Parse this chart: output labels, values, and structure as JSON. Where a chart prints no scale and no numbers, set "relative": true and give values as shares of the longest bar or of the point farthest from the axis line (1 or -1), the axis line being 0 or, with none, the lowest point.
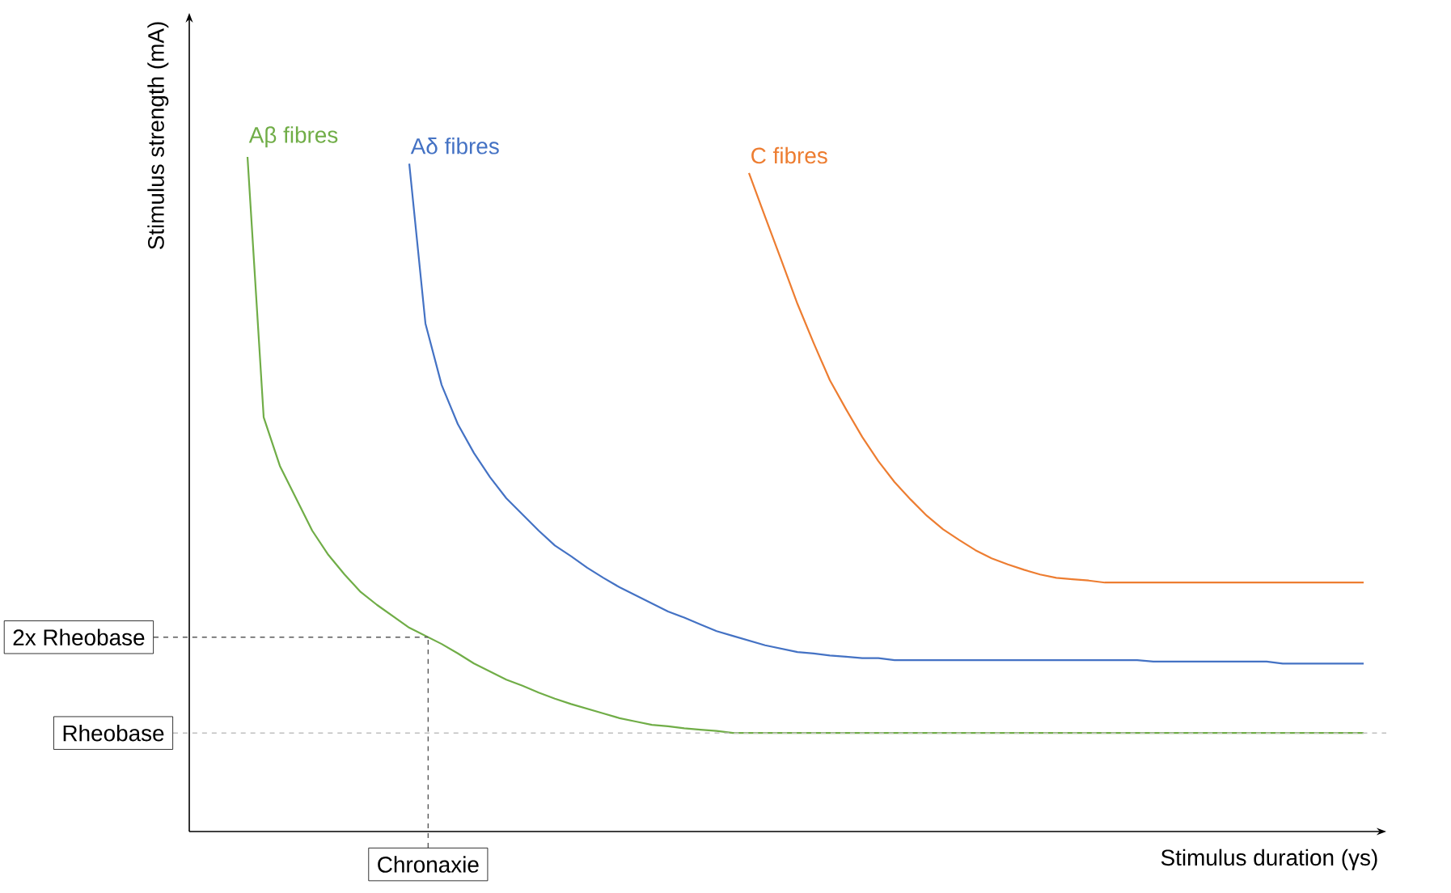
{
  "chart_data": {
    "type": "line",
    "relative": true,
    "xlabel": "Stimulus duration (γs)",
    "ylabel": "Stimulus strength (mA)",
    "categories": [
      null,
      null,
      null,
      null,
      null,
      null,
      null,
      null,
      null,
      null,
      null,
      null,
      null,
      null,
      null,
      null,
      null,
      null,
      null,
      null,
      null,
      null,
      null,
      null,
      null,
      null,
      null,
      null,
      null,
      null,
      null,
      null,
      null,
      null,
      null,
      null,
      null,
      null,
      null,
      null,
      null,
      null,
      null,
      null,
      null,
      null,
      null,
      null,
      null,
      null,
      null,
      null,
      null,
      null,
      null,
      null,
      null,
      null,
      null,
      null,
      null,
      null,
      null,
      null,
      null,
      null,
      null,
      null,
      null,
      null
    ],
    "series": [
      {
        "name": "Aβ fibres",
        "color": "#70ad47",
        "values": [
          1.0,
          0.614,
          0.542,
          0.494,
          0.446,
          0.41,
          0.381,
          0.355,
          0.336,
          0.319,
          0.302,
          0.29,
          0.278,
          0.264,
          0.249,
          0.237,
          0.225,
          0.216,
          0.206,
          0.197,
          0.189,
          0.182,
          0.175,
          0.168,
          0.163,
          0.158,
          0.156,
          0.153,
          0.151,
          0.149,
          0.146,
          0.146,
          0.146,
          0.146,
          0.146,
          0.146,
          0.146,
          0.146,
          0.146,
          0.146,
          0.146,
          0.146,
          0.146,
          0.146,
          0.146,
          0.146,
          0.146,
          0.146,
          0.146,
          0.146,
          0.146,
          0.146,
          0.146,
          0.146,
          0.146,
          0.146,
          0.146,
          0.146,
          0.146,
          0.146,
          0.146,
          0.146,
          0.146,
          0.146,
          0.146,
          0.146,
          0.146,
          0.146,
          0.146,
          0.146
        ]
      },
      {
        "name": "Aδ fibres",
        "color": "#4472c4",
        "values": [
          null,
          null,
          null,
          null,
          null,
          null,
          null,
          null,
          null,
          null,
          0.99,
          0.753,
          0.662,
          0.604,
          0.561,
          0.525,
          0.494,
          0.47,
          0.446,
          0.424,
          0.408,
          0.391,
          0.376,
          0.362,
          0.35,
          0.338,
          0.326,
          0.317,
          0.307,
          0.297,
          0.29,
          0.283,
          0.276,
          0.271,
          0.266,
          0.264,
          0.261,
          0.259,
          0.257,
          0.257,
          0.254,
          0.254,
          0.254,
          0.254,
          0.254,
          0.254,
          0.254,
          0.254,
          0.254,
          0.254,
          0.254,
          0.254,
          0.254,
          0.254,
          0.254,
          0.254,
          0.252,
          0.252,
          0.252,
          0.252,
          0.252,
          0.252,
          0.252,
          0.252,
          0.249,
          0.249,
          0.249,
          0.249,
          0.249,
          0.249
        ]
      },
      {
        "name": "C fibres",
        "color": "#ed7d31",
        "values": [
          null,
          null,
          null,
          null,
          null,
          null,
          null,
          null,
          null,
          null,
          null,
          null,
          null,
          null,
          null,
          null,
          null,
          null,
          null,
          null,
          null,
          null,
          null,
          null,
          null,
          null,
          null,
          null,
          null,
          null,
          null,
          0.976,
          0.911,
          0.847,
          0.782,
          0.724,
          0.669,
          0.626,
          0.585,
          0.549,
          0.518,
          0.492,
          0.468,
          0.448,
          0.432,
          0.417,
          0.405,
          0.396,
          0.388,
          0.381,
          0.376,
          0.374,
          0.372,
          0.369,
          0.369,
          0.369,
          0.369,
          0.369,
          0.369,
          0.369,
          0.369,
          0.369,
          0.369,
          0.369,
          0.369,
          0.369,
          0.369,
          0.369,
          0.369,
          0.369
        ]
      }
    ],
    "ref_lines": [
      {
        "axis": "y",
        "value": 0.288,
        "label": "2x Rheobase",
        "color": "#595959",
        "line_style": "dashed"
      },
      {
        "axis": "y",
        "value": 0.146,
        "label": "Rheobase",
        "color": "#bfbfbf",
        "line_style": "dashed"
      }
    ],
    "annotations": [
      "Chronaxie"
    ]
  }
}
